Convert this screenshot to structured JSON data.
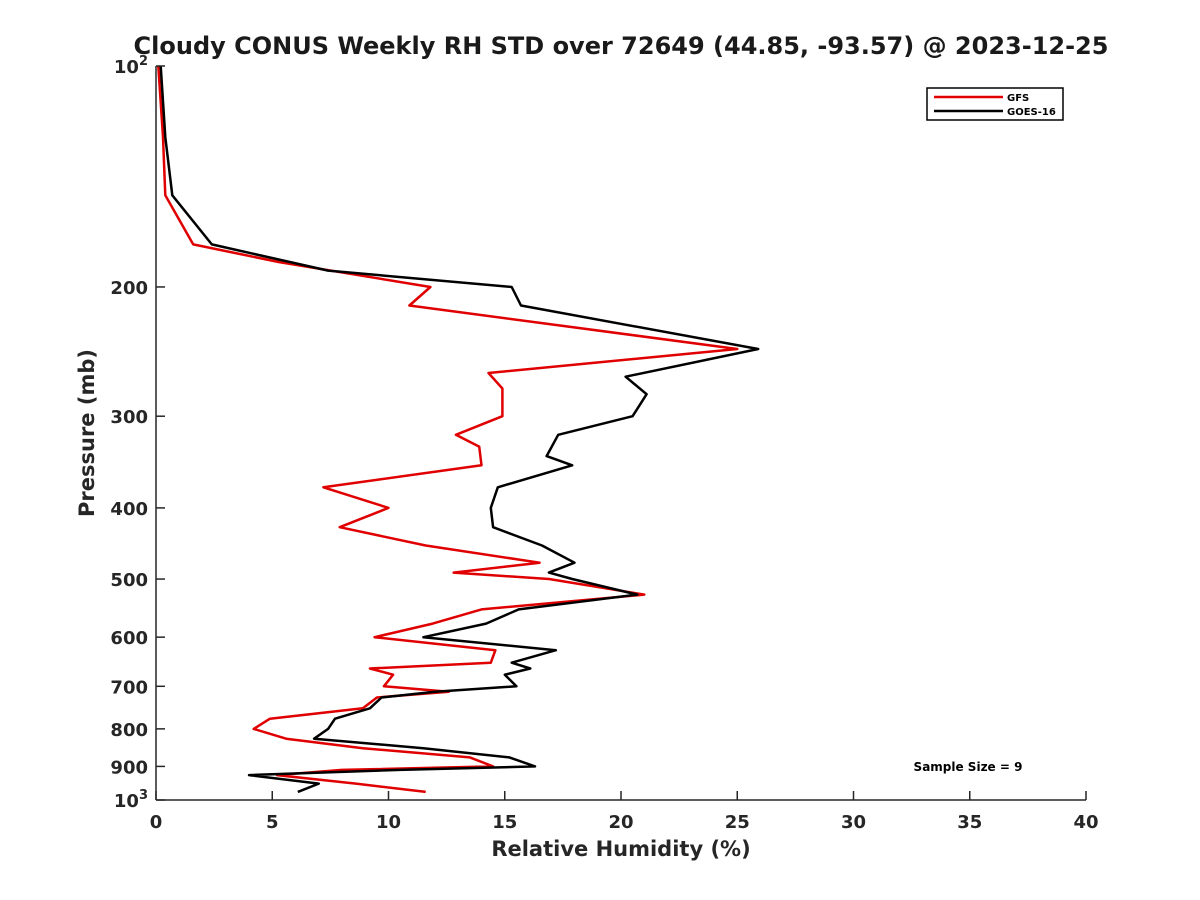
{
  "chart_data": {
    "type": "line",
    "title": "Cloudy CONUS Weekly RH STD over 72649 (44.85, -93.57) @ 2023-12-25",
    "xlabel": "Relative Humidity (%)",
    "ylabel": "Pressure (mb)",
    "xlim": [
      0,
      40
    ],
    "ylim": [
      100,
      1000
    ],
    "yscale": "log",
    "y_reversed": true,
    "grid": false,
    "legend_position": "top-right",
    "x_ticks": [
      0,
      5,
      10,
      15,
      20,
      25,
      30,
      35,
      40
    ],
    "x_tick_labels": [
      "0",
      "5",
      "10",
      "15",
      "20",
      "25",
      "30",
      "35",
      "40"
    ],
    "y_ticks": [
      100,
      200,
      300,
      400,
      500,
      600,
      700,
      800,
      900,
      1000
    ],
    "y_tick_labels": [
      {
        "base": "10",
        "exp": "2"
      },
      {
        "base": "200",
        "exp": ""
      },
      {
        "base": "300",
        "exp": ""
      },
      {
        "base": "400",
        "exp": ""
      },
      {
        "base": "500",
        "exp": ""
      },
      {
        "base": "600",
        "exp": ""
      },
      {
        "base": "700",
        "exp": ""
      },
      {
        "base": "800",
        "exp": ""
      },
      {
        "base": "900",
        "exp": ""
      },
      {
        "base": "10",
        "exp": "3"
      }
    ],
    "annotation": "Sample Size = 9",
    "series": [
      {
        "name": "GFS",
        "color": "#e00000",
        "points": [
          [
            0.1,
            100
          ],
          [
            0.3,
            125
          ],
          [
            0.4,
            150
          ],
          [
            1.6,
            175
          ],
          [
            5.3,
            185
          ],
          [
            11.8,
            200
          ],
          [
            10.9,
            212
          ],
          [
            25.0,
            243
          ],
          [
            14.3,
            262
          ],
          [
            14.9,
            275
          ],
          [
            14.9,
            300
          ],
          [
            12.9,
            318
          ],
          [
            13.9,
            330
          ],
          [
            14.0,
            350
          ],
          [
            7.2,
            375
          ],
          [
            10.0,
            400
          ],
          [
            7.9,
            425
          ],
          [
            11.6,
            450
          ],
          [
            16.5,
            475
          ],
          [
            12.8,
            490
          ],
          [
            16.9,
            500
          ],
          [
            21.0,
            525
          ],
          [
            14.0,
            550
          ],
          [
            11.9,
            575
          ],
          [
            9.4,
            600
          ],
          [
            14.6,
            625
          ],
          [
            14.4,
            650
          ],
          [
            9.2,
            662
          ],
          [
            10.2,
            675
          ],
          [
            9.8,
            700
          ],
          [
            12.6,
            712
          ],
          [
            9.5,
            725
          ],
          [
            8.9,
            750
          ],
          [
            4.9,
            775
          ],
          [
            4.2,
            800
          ],
          [
            5.6,
            825
          ],
          [
            8.9,
            850
          ],
          [
            13.5,
            875
          ],
          [
            14.5,
            900
          ],
          [
            8.0,
            910
          ],
          [
            5.2,
            925
          ],
          [
            8.6,
            950
          ],
          [
            11.6,
            975
          ]
        ]
      },
      {
        "name": "GOES-16",
        "color": "#000000",
        "points": [
          [
            0.2,
            100
          ],
          [
            0.4,
            125
          ],
          [
            0.7,
            150
          ],
          [
            2.4,
            175
          ],
          [
            7.4,
            190
          ],
          [
            15.3,
            200
          ],
          [
            15.7,
            212
          ],
          [
            25.9,
            243
          ],
          [
            20.2,
            265
          ],
          [
            21.1,
            280
          ],
          [
            20.5,
            300
          ],
          [
            17.3,
            318
          ],
          [
            16.8,
            340
          ],
          [
            17.9,
            350
          ],
          [
            14.7,
            375
          ],
          [
            14.4,
            400
          ],
          [
            14.5,
            425
          ],
          [
            16.6,
            450
          ],
          [
            18.0,
            475
          ],
          [
            16.9,
            490
          ],
          [
            17.9,
            500
          ],
          [
            20.7,
            525
          ],
          [
            15.6,
            550
          ],
          [
            14.2,
            575
          ],
          [
            11.5,
            600
          ],
          [
            17.2,
            625
          ],
          [
            15.3,
            650
          ],
          [
            16.1,
            662
          ],
          [
            15.0,
            675
          ],
          [
            15.5,
            700
          ],
          [
            12.0,
            712
          ],
          [
            9.7,
            725
          ],
          [
            9.2,
            750
          ],
          [
            7.7,
            775
          ],
          [
            7.4,
            800
          ],
          [
            6.8,
            825
          ],
          [
            11.5,
            850
          ],
          [
            15.2,
            875
          ],
          [
            16.3,
            900
          ],
          [
            10.5,
            910
          ],
          [
            4.0,
            925
          ],
          [
            7.0,
            950
          ],
          [
            6.1,
            975
          ]
        ]
      }
    ]
  }
}
